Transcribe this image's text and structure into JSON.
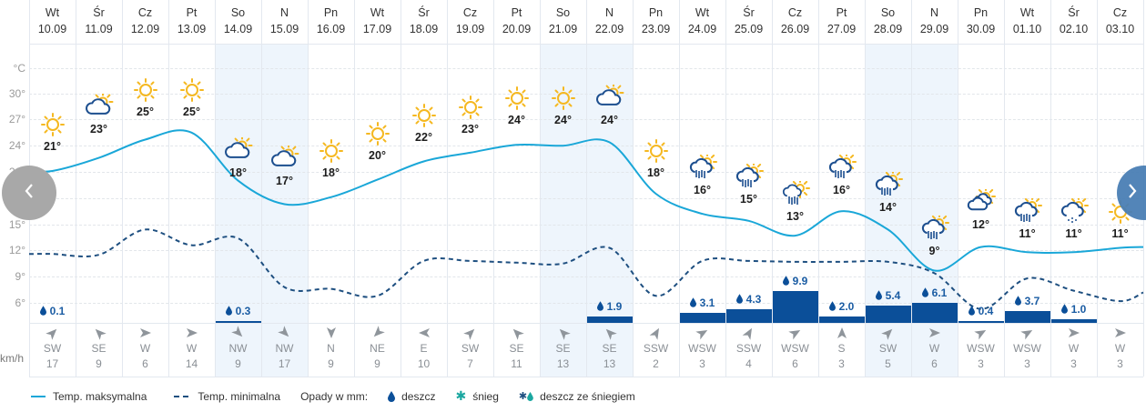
{
  "y_axis": {
    "unit_label": "°C",
    "ticks": [
      "30°",
      "27°",
      "24°",
      "21°",
      "18°",
      "15°",
      "12°",
      "9°",
      "6°"
    ]
  },
  "wind_unit": "km/h",
  "nav": {
    "prev_label": "‹",
    "next_label": "›"
  },
  "colors": {
    "max_line": "#1aa7d8",
    "min_line": "#1e4f80",
    "precip_bar": "#0b4f99",
    "weekend_bg": "#eef5fc",
    "sun": "#f5b820",
    "cloud": "#1d4f8f",
    "nav_prev": "#a8a8a8",
    "nav_next": "#4a7fb5"
  },
  "days": [
    {
      "dow": "Wt",
      "date": "10.09",
      "max": "21°",
      "icon": "sun",
      "precip": "0.1",
      "wind_dir": "SW",
      "wind_speed": "17",
      "weekend": false
    },
    {
      "dow": "Śr",
      "date": "11.09",
      "max": "23°",
      "icon": "cloud-sun",
      "precip": "",
      "wind_dir": "SE",
      "wind_speed": "9",
      "weekend": false
    },
    {
      "dow": "Cz",
      "date": "12.09",
      "max": "25°",
      "icon": "sun",
      "precip": "",
      "wind_dir": "W",
      "wind_speed": "6",
      "weekend": false
    },
    {
      "dow": "Pt",
      "date": "13.09",
      "max": "25°",
      "icon": "sun",
      "precip": "",
      "wind_dir": "W",
      "wind_speed": "14",
      "weekend": false
    },
    {
      "dow": "So",
      "date": "14.09",
      "max": "18°",
      "icon": "cloud-sun",
      "precip": "0.3",
      "wind_dir": "NW",
      "wind_speed": "9",
      "weekend": true
    },
    {
      "dow": "N",
      "date": "15.09",
      "max": "17°",
      "icon": "cloud-sun",
      "precip": "",
      "wind_dir": "NW",
      "wind_speed": "17",
      "weekend": true
    },
    {
      "dow": "Pn",
      "date": "16.09",
      "max": "18°",
      "icon": "sun",
      "precip": "",
      "wind_dir": "N",
      "wind_speed": "9",
      "weekend": false
    },
    {
      "dow": "Wt",
      "date": "17.09",
      "max": "20°",
      "icon": "sun",
      "precip": "",
      "wind_dir": "NE",
      "wind_speed": "9",
      "weekend": false
    },
    {
      "dow": "Śr",
      "date": "18.09",
      "max": "22°",
      "icon": "sun",
      "precip": "",
      "wind_dir": "E",
      "wind_speed": "10",
      "weekend": false
    },
    {
      "dow": "Cz",
      "date": "19.09",
      "max": "23°",
      "icon": "sun",
      "precip": "",
      "wind_dir": "SW",
      "wind_speed": "7",
      "weekend": false
    },
    {
      "dow": "Pt",
      "date": "20.09",
      "max": "24°",
      "icon": "sun",
      "precip": "",
      "wind_dir": "SE",
      "wind_speed": "11",
      "weekend": false
    },
    {
      "dow": "So",
      "date": "21.09",
      "max": "24°",
      "icon": "sun",
      "precip": "",
      "wind_dir": "SE",
      "wind_speed": "13",
      "weekend": true
    },
    {
      "dow": "N",
      "date": "22.09",
      "max": "24°",
      "icon": "cloud-sun",
      "precip": "1.9",
      "wind_dir": "SE",
      "wind_speed": "13",
      "weekend": true
    },
    {
      "dow": "Pn",
      "date": "23.09",
      "max": "18°",
      "icon": "sun",
      "precip": "",
      "wind_dir": "SSW",
      "wind_speed": "2",
      "weekend": false
    },
    {
      "dow": "Wt",
      "date": "24.09",
      "max": "16°",
      "icon": "rain-sun",
      "precip": "3.1",
      "wind_dir": "WSW",
      "wind_speed": "3",
      "weekend": false
    },
    {
      "dow": "Śr",
      "date": "25.09",
      "max": "15°",
      "icon": "rain-sun",
      "precip": "4.3",
      "wind_dir": "SSW",
      "wind_speed": "4",
      "weekend": false
    },
    {
      "dow": "Cz",
      "date": "26.09",
      "max": "13°",
      "icon": "heavy-rain-sun",
      "precip": "9.9",
      "wind_dir": "WSW",
      "wind_speed": "6",
      "weekend": false
    },
    {
      "dow": "Pt",
      "date": "27.09",
      "max": "16°",
      "icon": "rain-sun",
      "precip": "2.0",
      "wind_dir": "S",
      "wind_speed": "3",
      "weekend": false
    },
    {
      "dow": "So",
      "date": "28.09",
      "max": "14°",
      "icon": "rain-sun",
      "precip": "5.4",
      "wind_dir": "SW",
      "wind_speed": "5",
      "weekend": true
    },
    {
      "dow": "N",
      "date": "29.09",
      "max": "9°",
      "icon": "rain-sun",
      "precip": "6.1",
      "wind_dir": "W",
      "wind_speed": "6",
      "weekend": true
    },
    {
      "dow": "Pn",
      "date": "30.09",
      "max": "12°",
      "icon": "clouds-sun",
      "precip": "0.4",
      "wind_dir": "WSW",
      "wind_speed": "3",
      "weekend": false
    },
    {
      "dow": "Wt",
      "date": "01.10",
      "max": "11°",
      "icon": "rain-sun",
      "precip": "3.7",
      "wind_dir": "WSW",
      "wind_speed": "3",
      "weekend": false
    },
    {
      "dow": "Śr",
      "date": "02.10",
      "max": "11°",
      "icon": "drizzle-sun",
      "precip": "1.0",
      "wind_dir": "W",
      "wind_speed": "3",
      "weekend": false
    },
    {
      "dow": "Cz",
      "date": "03.10",
      "max": "11°",
      "icon": "sun",
      "precip": "",
      "wind_dir": "W",
      "wind_speed": "3",
      "weekend": false
    }
  ],
  "legend": {
    "max_label": "Temp. maksymalna",
    "min_label": "Temp. minimalna",
    "precip_label": "Opady w mm:",
    "rain_label": "deszcz",
    "snow_label": "śnieg",
    "sleet_label": "deszcz ze śniegiem"
  },
  "chart_data": {
    "type": "line",
    "title": "",
    "xlabel": "",
    "ylabel": "°C",
    "ylim": [
      4,
      33
    ],
    "grid": true,
    "legend_position": "bottom",
    "categories": [
      "Wt 10.09",
      "Śr 11.09",
      "Cz 12.09",
      "Pt 13.09",
      "So 14.09",
      "N 15.09",
      "Pn 16.09",
      "Wt 17.09",
      "Śr 18.09",
      "Cz 19.09",
      "Pt 20.09",
      "So 21.09",
      "N 22.09",
      "Pn 23.09",
      "Wt 24.09",
      "Śr 25.09",
      "Cz 26.09",
      "Pt 27.09",
      "So 28.09",
      "N 29.09",
      "Pn 30.09",
      "Wt 01.10",
      "Śr 02.10",
      "Cz 03.10"
    ],
    "y_ticks": [
      6,
      9,
      12,
      15,
      18,
      21,
      24,
      27,
      30
    ],
    "series": [
      {
        "name": "Temp. maksymalna",
        "type": "line",
        "style": "solid",
        "values": [
          21,
          23,
          25,
          25,
          18,
          17,
          18,
          20,
          22,
          23,
          24,
          24,
          24,
          18,
          16,
          15,
          13,
          16,
          14,
          9,
          12,
          11,
          11,
          11
        ]
      },
      {
        "name": "Temp. maksymalna (curve)",
        "type": "line",
        "style": "solid",
        "values": [
          21.1,
          22.6,
          24.7,
          25.5,
          20.0,
          17.3,
          18.1,
          20.1,
          22.2,
          23.2,
          24.1,
          24.0,
          24.4,
          18.5,
          16.2,
          15.4,
          13.7,
          16.5,
          14.4,
          9.7,
          12.4,
          11.8,
          11.8,
          12.3
        ]
      },
      {
        "name": "Temp. minimalna",
        "type": "line",
        "style": "dashed",
        "values": [
          11.6,
          11.5,
          14.4,
          12.6,
          13.4,
          7.8,
          7.6,
          6.8,
          10.8,
          10.8,
          10.6,
          10.5,
          12.3,
          6.8,
          10.8,
          10.8,
          10.7,
          10.7,
          10.7,
          9.4,
          5.3,
          8.8,
          7.4,
          6.2
        ]
      },
      {
        "name": "Opady (mm) - deszcz",
        "type": "bar",
        "values": [
          0.1,
          0,
          0,
          0,
          0.3,
          0,
          0,
          0,
          0,
          0,
          0,
          0,
          1.9,
          0,
          3.1,
          4.3,
          9.9,
          2.0,
          5.4,
          6.1,
          0.4,
          3.7,
          1.0,
          0
        ]
      }
    ],
    "annotations": {
      "max_temp_labels": [
        "21°",
        "23°",
        "25°",
        "25°",
        "18°",
        "17°",
        "18°",
        "20°",
        "22°",
        "23°",
        "24°",
        "24°",
        "24°",
        "18°",
        "16°",
        "15°",
        "13°",
        "16°",
        "14°",
        "9°",
        "12°",
        "11°",
        "11°",
        "11°"
      ],
      "wind_dir": [
        "SW",
        "SE",
        "W",
        "W",
        "NW",
        "NW",
        "N",
        "NE",
        "E",
        "SW",
        "SE",
        "SE",
        "SE",
        "SSW",
        "WSW",
        "SSW",
        "WSW",
        "S",
        "SW",
        "W",
        "WSW",
        "WSW",
        "W",
        "W"
      ],
      "wind_speed_kmh": [
        17,
        9,
        6,
        14,
        9,
        17,
        9,
        9,
        10,
        7,
        11,
        13,
        13,
        2,
        3,
        4,
        6,
        3,
        5,
        6,
        3,
        3,
        3,
        3
      ]
    }
  }
}
